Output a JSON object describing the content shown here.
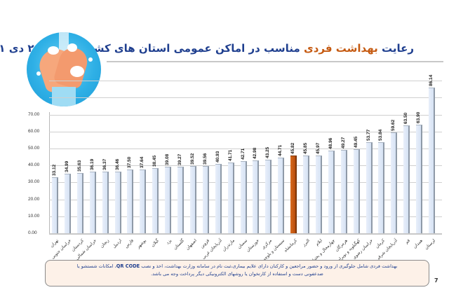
{
  "title": {
    "prefix": "رعایت ",
    "highlight": "بهداشت فردی",
    "suffix": " مناسب در اماکن عمومی استان های کشور – ۲۱ تا ۲۸ دی ۱۴۰۱",
    "color": "#1f3f8f",
    "highlight_color": "#c55a11"
  },
  "logo": {
    "icon": "handwashing-icon"
  },
  "note": {
    "line1_part1": "بهداشت فردی شامل جلوگیری از ورود و حضور مراجعین و کارکنان دارای علایم بیماری،ثبت نام در سامانه وزارت بهداشت، اخذ و نصب ",
    "line1_code": "QR CODE",
    "line1_part2": "، امکانات شستشو یا",
    "line2": "ضدعفونی دست و استفاده از کارتخوان یا روشهای الکترونیکی دیگر پرداخت وجه می باشد."
  },
  "page_number": "7",
  "chart_data": {
    "type": "bar",
    "title": "رعایت بهداشت فردی مناسب در اماکن عمومی استان های کشور – ۲۱ تا ۲۸ دی ۱۴۰۱",
    "xlabel": "",
    "ylabel": "",
    "ylim": [
      0,
      90
    ],
    "yticks": [
      "0.00",
      "10.00",
      "20.00",
      "30.00",
      "40.00",
      "50.00",
      "60.00",
      "70.00"
    ],
    "grid": true,
    "legend": null,
    "highlight_index": 19,
    "highlight_color": "#c55a11",
    "bar_color": "#dce6f4",
    "categories": [
      "تهران",
      "خراسان جنوبی",
      "کردستان",
      "خراسان شمالی",
      "زنجان",
      "اردبیل",
      "فارس",
      "بوشهر",
      "گیلان",
      "یزد",
      "گلستان",
      "اصفهان",
      "قزوین",
      "آذربایجان غربی",
      "مازندران",
      "سمنان",
      "خوزستان",
      "مرکزی",
      "سیستان و بلوچستان",
      "کرمانشاه",
      "البرز",
      "ایلام",
      "چهارمحال و بختیاری",
      "هرمزگان",
      "کهگیلویه و بویراحمد",
      "خراسان رضوی",
      "کرمان",
      "آذربایجان شرقی",
      "قم",
      "همدان",
      "لرستان"
    ],
    "values": [
      33.12,
      34.99,
      35.63,
      36.19,
      36.37,
      36.46,
      37.5,
      37.64,
      38.45,
      39.08,
      39.27,
      39.52,
      39.56,
      40.93,
      41.71,
      42.71,
      42.98,
      43.25,
      44.71,
      45.82,
      45.85,
      45.97,
      48.96,
      49.27,
      49.45,
      53.77,
      53.84,
      59.62,
      63.5,
      63.9,
      86.14
    ],
    "value_labels": [
      "33.12",
      "34.99",
      "35.63",
      "36.19",
      "36.37",
      "36.46",
      "37.50",
      "37.64",
      "38.45",
      "39.08",
      "39.27",
      "39.52",
      "39.56",
      "40.93",
      "41.71",
      "42.71",
      "42.98",
      "43.25",
      "44.71",
      "45.82",
      "45.85",
      "45.97",
      "48.96",
      "49.27",
      "49.45",
      "53.77",
      "53.84",
      "59.62",
      "63.50",
      "63.90",
      "86.14"
    ]
  }
}
